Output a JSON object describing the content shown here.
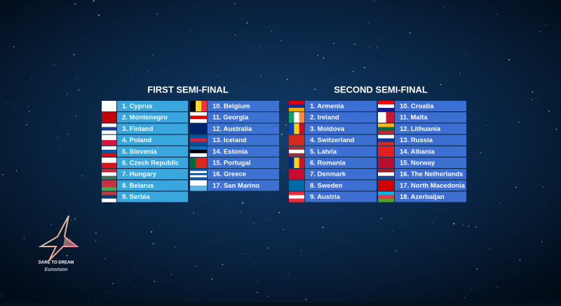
{
  "first_semi_final": {
    "title": "FIRST SEMI-FINAL",
    "columns": [
      [
        "1. Cyprus",
        "2. Montenegro",
        "3. Finland",
        "4. Poland",
        "5. Slovenia",
        "6. Czech Republic",
        "7. Hungary",
        "8. Belarus",
        "9. Serbia"
      ],
      [
        "10. Belgium",
        "11. Georgia",
        "12. Australia",
        "13. Iceland",
        "14. Estonia",
        "15. Portugal",
        "16. Greece",
        "17. San Marino"
      ]
    ]
  },
  "second_semi_final": {
    "title": "SECOND SEMI-FINAL",
    "columns": [
      [
        "1. Armenia",
        "2. Ireland",
        "3. Moldova",
        "4. Switzerland",
        "5. Latvia",
        "6. Romania",
        "7. Denmark",
        "8. Sweden",
        "9. Austria"
      ],
      [
        "10. Croatia",
        "11. Malta",
        "12. Lithuania",
        "13. Russia",
        "14. Albania",
        "15. Norway",
        "16. The Netherlands",
        "17. North Macedonia",
        "18. Azerbaijan"
      ]
    ]
  },
  "logo": {
    "slogan": "DARE TO DREAM",
    "brand": "Eurovision"
  }
}
